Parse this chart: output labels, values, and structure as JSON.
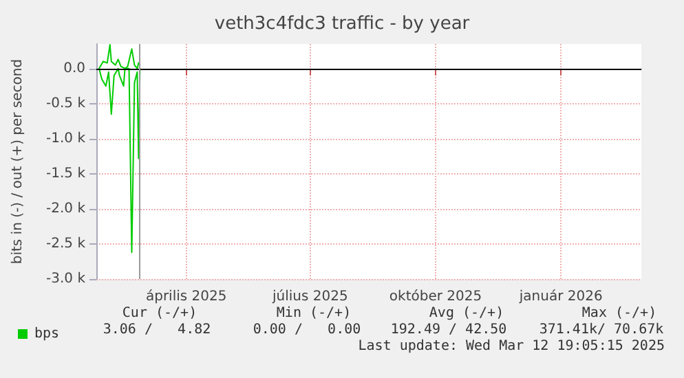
{
  "chart_data": {
    "type": "line",
    "title": "veth3c4fdc3 traffic - by year",
    "ylabel": "bits in (-) / out (+) per second",
    "xlim": [
      "2025-02-08",
      "2026-03-15"
    ],
    "xticks": [
      {
        "value": "2025-04-15",
        "label": "április 2025"
      },
      {
        "value": "2025-07-15",
        "label": "július 2025"
      },
      {
        "value": "2025-10-15",
        "label": "október 2025"
      },
      {
        "value": "2026-01-15",
        "label": "január 2026"
      }
    ],
    "ylim": [
      -3000,
      350
    ],
    "yticks": [
      {
        "value": -3000,
        "label": "-3.0 k"
      },
      {
        "value": -2500,
        "label": "-2.5 k"
      },
      {
        "value": -2000,
        "label": "-2.0 k"
      },
      {
        "value": -1500,
        "label": "-1.5 k"
      },
      {
        "value": -1000,
        "label": "-1.0 k"
      },
      {
        "value": -500,
        "label": "-0.5 k"
      },
      {
        "value": 0,
        "label": "0.0"
      }
    ],
    "grid": true,
    "legend": "bottom left",
    "marker": "none",
    "line_style": "solid",
    "series": [
      {
        "color": "#00cc00",
        "x": [
          "2025-02-10",
          "2025-02-12",
          "2025-02-15",
          "2025-02-17",
          "2025-02-19",
          "2025-02-21",
          "2025-02-24",
          "2025-02-25",
          "2025-02-28",
          "2025-03-01",
          "2025-03-04",
          "2025-03-06",
          "2025-03-08",
          "2025-03-10",
          "2025-03-11",
          "2025-03-12"
        ],
        "values": [
          0,
          -150,
          -250,
          -50,
          -650,
          -100,
          0,
          -100,
          -250,
          0,
          0,
          -2620,
          -200,
          -50,
          -1280,
          0
        ]
      },
      {
        "name": "bps",
        "color": "#00cc00",
        "x": [
          "2025-02-10",
          "2025-02-13",
          "2025-02-16",
          "2025-02-18",
          "2025-02-19",
          "2025-02-22",
          "2025-02-24",
          "2025-02-26",
          "2025-03-01",
          "2025-03-03",
          "2025-03-06",
          "2025-03-08",
          "2025-03-10",
          "2025-03-11",
          "2025-03-12"
        ],
        "values": [
          0,
          100,
          80,
          340,
          100,
          50,
          130,
          30,
          0,
          30,
          280,
          50,
          0,
          80,
          50
        ]
      }
    ],
    "ref_lines": [
      {
        "axis": "y",
        "value": 0,
        "color": "#000000"
      },
      {
        "axis": "x",
        "value": "2025-03-12",
        "color": "#999999"
      }
    ],
    "annotations": [
      "Cur (-/+)",
      "3.06 /   4.82",
      "Min (-/+)",
      "0.00 /   0.00",
      "Avg (-/+)",
      "192.49 / 42.50",
      "Max (-/+)",
      "371.41k/ 70.67k",
      "Last update: Wed Mar 12 19:05:15 2025"
    ]
  }
}
